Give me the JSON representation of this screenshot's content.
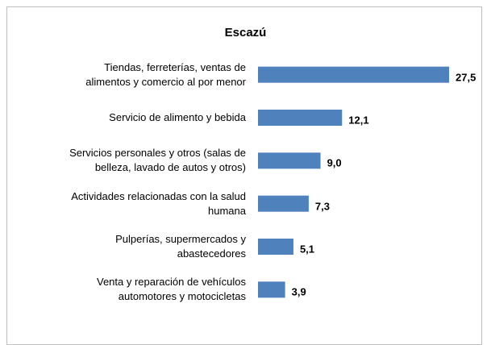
{
  "chart_data": {
    "type": "bar",
    "orientation": "horizontal",
    "title": "Escazú",
    "categories": [
      "Tiendas, ferreterías, ventas de\nalimentos y comercio al por menor",
      "Servicio de alimento y bebida",
      "Servicios personales y otros (salas de\nbelleza, lavado de autos y otros)",
      "Actividades relacionadas con la salud\nhumana",
      "Pulperías, supermercados y\nabastecedores",
      "Venta y reparación de vehículos\nautomotores y motocicletas"
    ],
    "values": [
      27.5,
      12.1,
      9.0,
      7.3,
      5.1,
      3.9
    ],
    "value_labels": [
      "27,5",
      "12,1",
      "9,0",
      "7,3",
      "5,1",
      "3,9"
    ],
    "color": "#4f81bd"
  }
}
